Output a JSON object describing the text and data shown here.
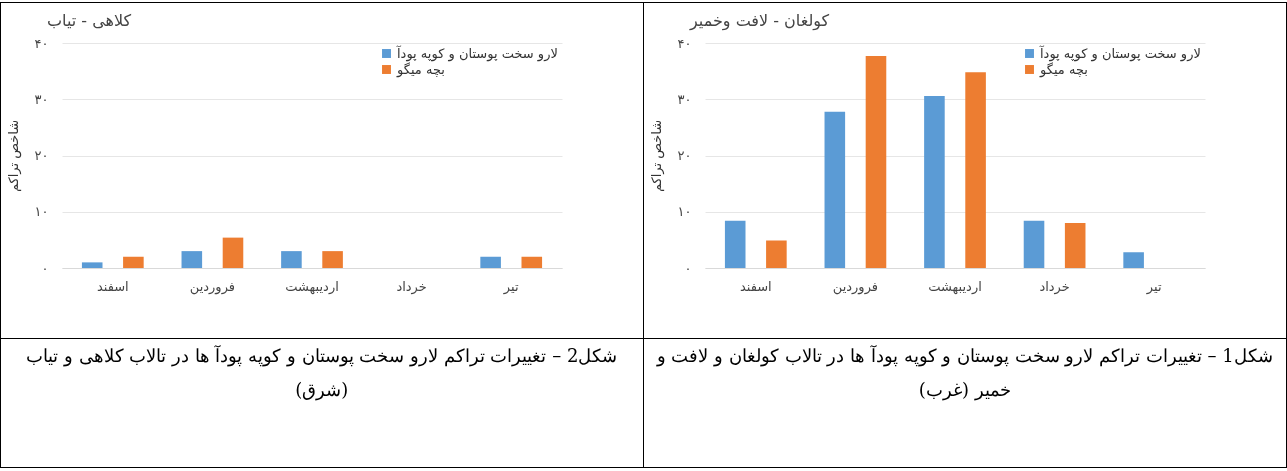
{
  "chart_data": [
    {
      "type": "bar",
      "title": "کولغان - لافت وخمیر",
      "ylabel": "شاخص تراکم",
      "categories": [
        "اسفند",
        "فروردین",
        "اردیبهشت",
        "خرداد",
        "تیر"
      ],
      "series": [
        {
          "name": "لارو سخت پوستان و کوپه پودآ",
          "color": "#5b9bd5",
          "values": [
            8.4,
            27.8,
            30.6,
            8.4,
            2.8
          ]
        },
        {
          "name": "بچه میگو",
          "color": "#ed7d31",
          "values": [
            4.9,
            37.7,
            34.8,
            8.0,
            0
          ]
        }
      ],
      "ylim": [
        0,
        40
      ],
      "yticks": [
        {
          "value": 0,
          "label": "۰"
        },
        {
          "value": 10,
          "label": "۱۰"
        },
        {
          "value": 20,
          "label": "۲۰"
        },
        {
          "value": 30,
          "label": "۳۰"
        },
        {
          "value": 40,
          "label": "۴۰"
        }
      ],
      "grid": "y",
      "legend": "top right",
      "annotations": [
        "شکل1 – تغییرات تراکم لارو سخت پوستان و کوپه پودآ ها در تالاب کولغان و لافت و خمیر (غرب)"
      ]
    },
    {
      "type": "bar",
      "title": "کلاهی - تیاب",
      "ylabel": "شاخص تراکم",
      "categories": [
        "اسفند",
        "فروردین",
        "اردیبهشت",
        "خرداد",
        "تیر"
      ],
      "series": [
        {
          "name": "لارو سخت پوستان و کوپه پودآ",
          "color": "#5b9bd5",
          "values": [
            1,
            3,
            3,
            0,
            2
          ]
        },
        {
          "name": "بچه میگو",
          "color": "#ed7d31",
          "values": [
            2,
            5.4,
            3,
            0,
            2
          ]
        }
      ],
      "ylim": [
        0,
        40
      ],
      "yticks": [
        {
          "value": 0,
          "label": "۰"
        },
        {
          "value": 10,
          "label": "۱۰"
        },
        {
          "value": 20,
          "label": "۲۰"
        },
        {
          "value": 30,
          "label": "۳۰"
        },
        {
          "value": 40,
          "label": "۴۰"
        }
      ],
      "grid": "y",
      "legend": "top right",
      "annotations": [
        "شکل2 – تغییرات تراکم لارو سخت پوستان و کوپه پودآ ها در تالاب کلاهی و تیاب (شرق)"
      ]
    }
  ]
}
